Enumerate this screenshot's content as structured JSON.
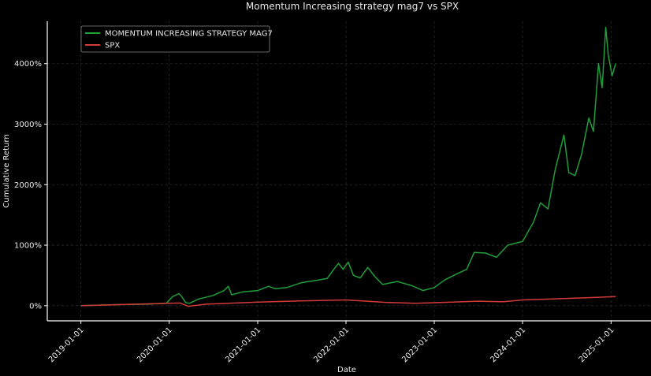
{
  "chart_data": {
    "type": "line",
    "title": "Momentum Increasing strategy mag7 vs SPX",
    "xlabel": "Date",
    "ylabel": "Cumulative Return",
    "x_ticks": [
      "2019-01-01",
      "2020-01-01",
      "2021-01-01",
      "2022-01-01",
      "2023-01-01",
      "2024-01-01",
      "2025-01-01"
    ],
    "y_ticks": [
      "0%",
      "1000%",
      "2000%",
      "3000%",
      "4000%"
    ],
    "y_tick_values": [
      0,
      1000,
      2000,
      3000,
      4000
    ],
    "xlim": [
      "2018-08-15",
      "2025-06-15"
    ],
    "ylim": [
      -250,
      4700
    ],
    "grid": true,
    "legend_position": "top-left",
    "colors": {
      "background": "#000000",
      "grid": "#2a2a2a",
      "axis": "#ffffff"
    },
    "series": [
      {
        "name": "MOMENTUM INCREASING STRATEGY MAG7",
        "color": "#1f9e3a",
        "points": [
          [
            "2019-01-01",
            0
          ],
          [
            "2019-04-01",
            10
          ],
          [
            "2019-07-01",
            20
          ],
          [
            "2019-10-01",
            25
          ],
          [
            "2019-12-20",
            40
          ],
          [
            "2020-01-15",
            150
          ],
          [
            "2020-02-10",
            200
          ],
          [
            "2020-02-20",
            160
          ],
          [
            "2020-03-10",
            50
          ],
          [
            "2020-03-25",
            40
          ],
          [
            "2020-05-01",
            110
          ],
          [
            "2020-07-01",
            170
          ],
          [
            "2020-08-15",
            250
          ],
          [
            "2020-09-01",
            320
          ],
          [
            "2020-09-15",
            180
          ],
          [
            "2020-11-01",
            230
          ],
          [
            "2021-01-01",
            250
          ],
          [
            "2021-02-15",
            320
          ],
          [
            "2021-03-15",
            280
          ],
          [
            "2021-05-01",
            300
          ],
          [
            "2021-07-01",
            380
          ],
          [
            "2021-09-01",
            420
          ],
          [
            "2021-10-15",
            450
          ],
          [
            "2021-11-15",
            620
          ],
          [
            "2021-12-01",
            700
          ],
          [
            "2021-12-20",
            600
          ],
          [
            "2022-01-10",
            720
          ],
          [
            "2022-02-01",
            500
          ],
          [
            "2022-03-01",
            460
          ],
          [
            "2022-04-01",
            630
          ],
          [
            "2022-05-01",
            480
          ],
          [
            "2022-06-01",
            350
          ],
          [
            "2022-08-01",
            400
          ],
          [
            "2022-10-01",
            330
          ],
          [
            "2022-11-15",
            250
          ],
          [
            "2023-01-01",
            300
          ],
          [
            "2023-02-15",
            430
          ],
          [
            "2023-04-01",
            520
          ],
          [
            "2023-05-15",
            600
          ],
          [
            "2023-06-15",
            880
          ],
          [
            "2023-08-01",
            870
          ],
          [
            "2023-09-15",
            800
          ],
          [
            "2023-11-01",
            1000
          ],
          [
            "2024-01-01",
            1060
          ],
          [
            "2024-02-15",
            1380
          ],
          [
            "2024-03-15",
            1700
          ],
          [
            "2024-04-15",
            1600
          ],
          [
            "2024-05-15",
            2250
          ],
          [
            "2024-06-20",
            2820
          ],
          [
            "2024-07-10",
            2200
          ],
          [
            "2024-08-05",
            2150
          ],
          [
            "2024-09-01",
            2500
          ],
          [
            "2024-10-01",
            3100
          ],
          [
            "2024-10-20",
            2880
          ],
          [
            "2024-11-10",
            4000
          ],
          [
            "2024-11-25",
            3600
          ],
          [
            "2024-12-10",
            4600
          ],
          [
            "2024-12-20",
            4150
          ],
          [
            "2025-01-05",
            3800
          ],
          [
            "2025-01-20",
            4000
          ]
        ]
      },
      {
        "name": "SPX",
        "color": "#d43a3a",
        "points": [
          [
            "2019-01-01",
            0
          ],
          [
            "2019-07-01",
            20
          ],
          [
            "2020-01-01",
            40
          ],
          [
            "2020-02-15",
            45
          ],
          [
            "2020-03-20",
            -10
          ],
          [
            "2020-06-01",
            25
          ],
          [
            "2021-01-01",
            60
          ],
          [
            "2021-07-01",
            80
          ],
          [
            "2022-01-01",
            95
          ],
          [
            "2022-06-15",
            55
          ],
          [
            "2022-10-15",
            40
          ],
          [
            "2023-01-01",
            50
          ],
          [
            "2023-07-01",
            75
          ],
          [
            "2023-10-15",
            65
          ],
          [
            "2024-01-01",
            95
          ],
          [
            "2024-07-01",
            120
          ],
          [
            "2025-01-20",
            150
          ]
        ]
      }
    ]
  }
}
